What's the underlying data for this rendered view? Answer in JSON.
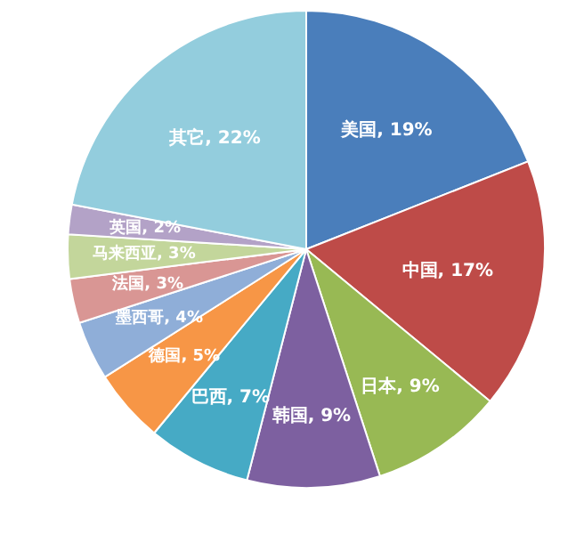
{
  "chart_data": {
    "type": "pie",
    "categories": [
      "美国",
      "中国",
      "日本",
      "韩国",
      "巴西",
      "德国",
      "墨西哥",
      "法国",
      "马来西亚",
      "英国",
      "其它"
    ],
    "values": [
      19,
      17,
      9,
      9,
      7,
      5,
      4,
      3,
      3,
      2,
      22
    ],
    "value_labels": [
      "19%",
      "17%",
      "9%",
      "9%",
      "7%",
      "5%",
      "4%",
      "3%",
      "3%",
      "2%",
      "22%"
    ],
    "colors": [
      "#4a7ebb",
      "#be4b48",
      "#98b954",
      "#7d60a0",
      "#46aac5",
      "#f79646",
      "#8faed8",
      "#d99694",
      "#c3d69b",
      "#b3a2c7",
      "#93cddd"
    ]
  }
}
